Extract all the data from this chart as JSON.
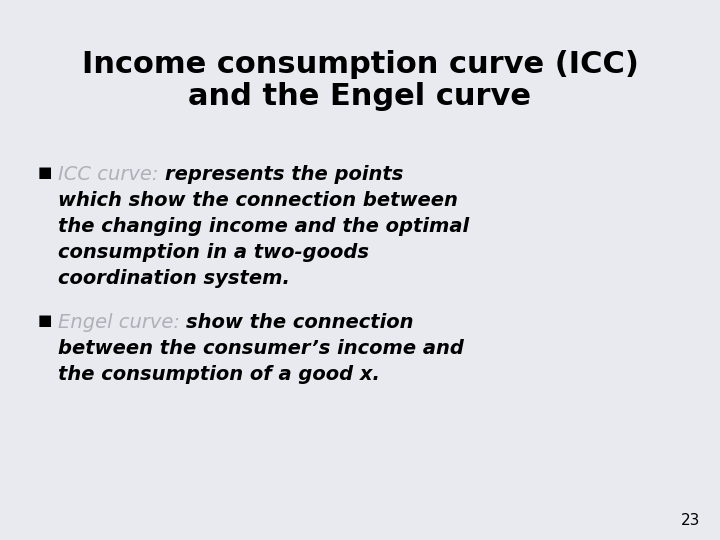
{
  "background_color": "#e8eaf0",
  "title_line1": "Income consumption curve (ICC)",
  "title_line2": "and the Engel curve",
  "title_color": "#000000",
  "title_fontsize": 22,
  "title_fontweight": "bold",
  "label_color": "#b0b0b8",
  "body_color": "#000000",
  "body_fontsize": 14,
  "label_fontsize": 14,
  "bullet_color": "#000000",
  "bullet_fontsize": 11,
  "bullet1_label": "ICC curve: ",
  "bullet1_text_line1": "represents the points",
  "bullet1_text_line2": "which show the connection between",
  "bullet1_text_line3": "the changing income and the optimal",
  "bullet1_text_line4": "consumption in a two-goods",
  "bullet1_text_line5": "coordination system.",
  "bullet2_label": "Engel curve: ",
  "bullet2_text_line1": "show the connection",
  "bullet2_text_line2": "between the consumer’s income and",
  "bullet2_text_line3": "the consumption of a good x.",
  "page_number": "23",
  "page_number_fontsize": 11
}
